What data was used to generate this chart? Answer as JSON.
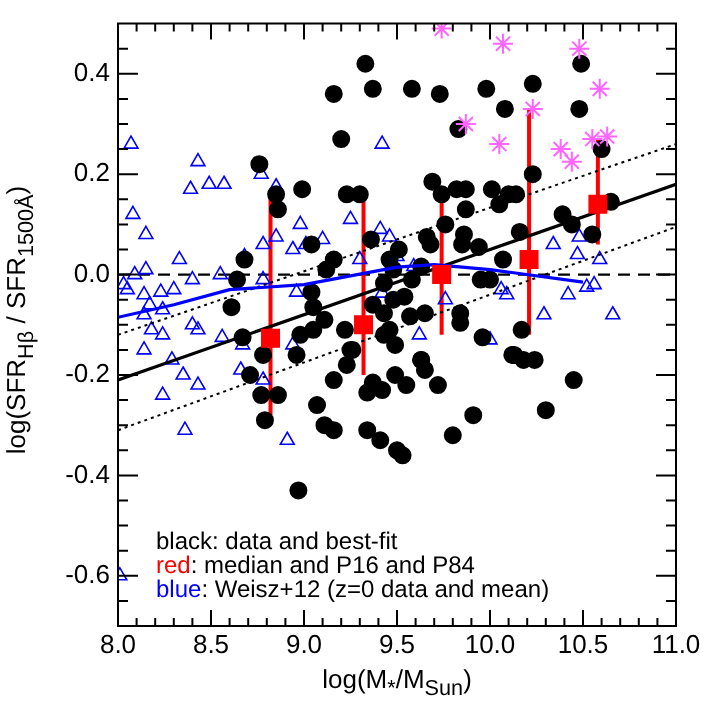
{
  "chart_data": {
    "type": "scatter",
    "xlabel": "log(M$_{*}$/M$_{Sun}$)",
    "ylabel": "log(SFR$_{Hβ}$ / SFR$_{1500Å}$)",
    "xlim": [
      8.0,
      11.0
    ],
    "ylim": [
      -0.7,
      0.5
    ],
    "xticks": [
      {
        "value": 8.0,
        "label": "8.0"
      },
      {
        "value": 8.1,
        "label": null
      },
      {
        "value": 8.2,
        "label": null
      },
      {
        "value": 8.3,
        "label": null
      },
      {
        "value": 8.4,
        "label": null
      },
      {
        "value": 8.5,
        "label": "8.5"
      },
      {
        "value": 8.6,
        "label": null
      },
      {
        "value": 8.7,
        "label": null
      },
      {
        "value": 8.8,
        "label": null
      },
      {
        "value": 8.9,
        "label": null
      },
      {
        "value": 9.0,
        "label": "9.0"
      },
      {
        "value": 9.1,
        "label": null
      },
      {
        "value": 9.2,
        "label": null
      },
      {
        "value": 9.3,
        "label": null
      },
      {
        "value": 9.4,
        "label": null
      },
      {
        "value": 9.5,
        "label": "9.5"
      },
      {
        "value": 9.6,
        "label": null
      },
      {
        "value": 9.7,
        "label": null
      },
      {
        "value": 9.8,
        "label": null
      },
      {
        "value": 9.9,
        "label": null
      },
      {
        "value": 10.0,
        "label": "10.0"
      },
      {
        "value": 10.1,
        "label": null
      },
      {
        "value": 10.2,
        "label": null
      },
      {
        "value": 10.3,
        "label": null
      },
      {
        "value": 10.4,
        "label": null
      },
      {
        "value": 10.5,
        "label": "10.5"
      },
      {
        "value": 10.6,
        "label": null
      },
      {
        "value": 10.7,
        "label": null
      },
      {
        "value": 10.8,
        "label": null
      },
      {
        "value": 10.9,
        "label": null
      },
      {
        "value": 11.0,
        "label": "11.0"
      }
    ],
    "yticks": [
      {
        "value": -0.7,
        "label": null
      },
      {
        "value": -0.65,
        "label": null
      },
      {
        "value": -0.6,
        "label": "-0.6"
      },
      {
        "value": -0.55,
        "label": null
      },
      {
        "value": -0.5,
        "label": null
      },
      {
        "value": -0.45,
        "label": null
      },
      {
        "value": -0.4,
        "label": "-0.4"
      },
      {
        "value": -0.35,
        "label": null
      },
      {
        "value": -0.3,
        "label": null
      },
      {
        "value": -0.25,
        "label": null
      },
      {
        "value": -0.2,
        "label": "-0.2"
      },
      {
        "value": -0.15,
        "label": null
      },
      {
        "value": -0.1,
        "label": null
      },
      {
        "value": -0.05,
        "label": null
      },
      {
        "value": 0.0,
        "label": "0.0"
      },
      {
        "value": 0.05,
        "label": null
      },
      {
        "value": 0.1,
        "label": null
      },
      {
        "value": 0.15,
        "label": null
      },
      {
        "value": 0.2,
        "label": "0.2"
      },
      {
        "value": 0.25,
        "label": null
      },
      {
        "value": 0.3,
        "label": null
      },
      {
        "value": 0.35,
        "label": null
      },
      {
        "value": 0.4,
        "label": "0.4"
      },
      {
        "value": 0.45,
        "label": null
      }
    ],
    "grid": false,
    "legend": false,
    "ref_lines": [
      {
        "axis": "y",
        "value": 0,
        "color": "#000000",
        "line_style": "dashed"
      }
    ],
    "annotations": [
      "black: data and best-fit",
      "red: median and P16 and P84",
      "blue: Weisz+12 (z=0 data and mean)"
    ],
    "series": [
      {
        "type": "scatter",
        "marker": "triangle",
        "color": "#0000ff",
        "x": [
          8.07,
          8.43,
          8.39,
          8.49,
          8.57,
          8.08,
          8.15,
          8.15,
          8.33,
          8.03,
          8.05,
          8.09,
          8.14,
          8.23,
          8.3,
          8.4,
          8.55,
          8.14,
          8.17,
          8.24,
          8.18,
          8.24,
          8.4,
          8.43,
          8.14,
          8.29,
          8.56,
          8.68,
          8.77,
          8.85,
          8.85,
          8.78,
          8.98,
          8.94,
          9.01,
          9.1,
          8.78,
          8.96,
          8.67,
          8.94,
          9.25,
          9.3,
          9.42,
          9.41,
          9.46,
          8.35,
          8.24,
          8.43,
          8.36,
          8.66,
          8.91,
          8.78,
          10.34,
          10.48,
          10.47,
          10.59,
          10.42,
          10.52,
          10.56,
          10.66,
          10.29,
          10.09,
          10.06,
          10.0,
          9.62,
          9.76,
          9.5,
          9.59,
          9.42,
          8.01
        ],
        "values": [
          0.26,
          0.225,
          0.17,
          0.18,
          0.18,
          0.12,
          0.08,
          0.01,
          0.03,
          -0.02,
          -0.03,
          0.0,
          -0.04,
          -0.035,
          -0.03,
          -0.01,
          0.0,
          -0.08,
          -0.06,
          -0.07,
          -0.11,
          -0.12,
          -0.1,
          -0.11,
          -0.15,
          -0.17,
          -0.125,
          0.036,
          0.2,
          0.175,
          0.075,
          0.06,
          0.1,
          0.05,
          0.06,
          0.07,
          -0.01,
          -0.035,
          -0.14,
          -0.14,
          0.11,
          0.03,
          0.26,
          0.09,
          0.075,
          -0.2,
          -0.24,
          -0.22,
          -0.31,
          -0.19,
          -0.33,
          -0.21,
          0.06,
          0.075,
          0.04,
          0.03,
          -0.04,
          -0.025,
          -0.02,
          -0.08,
          -0.08,
          -0.04,
          -0.03,
          -0.13,
          -0.12,
          -0.05,
          0.036,
          0.016,
          -0.037,
          -0.6
        ]
      },
      {
        "type": "scatter",
        "marker": "circle",
        "color": "#000000",
        "x": [
          8.76,
          8.85,
          8.86,
          8.99,
          9.16,
          9.2,
          9.23,
          9.33,
          9.37,
          9.3,
          9.36,
          9.04,
          9.16,
          8.68,
          8.64,
          8.61,
          8.67,
          8.78,
          8.98,
          9.05,
          9.11,
          9.12,
          9.04,
          9.05,
          9.22,
          9.25,
          9.37,
          9.43,
          9.46,
          8.96,
          8.71,
          8.77,
          8.86,
          8.79,
          8.97,
          9.07,
          9.11,
          9.16,
          9.16,
          9.26,
          9.34,
          9.34,
          9.37,
          9.5,
          9.23,
          9.41,
          9.53,
          9.49,
          9.42,
          9.55,
          9.63,
          9.65,
          9.72,
          9.8,
          9.91,
          10.12,
          10.18,
          10.24,
          10.3,
          10.45,
          9.58,
          9.73,
          9.98,
          10.08,
          10.23,
          10.49,
          10.48,
          9.83,
          10.6,
          9.69,
          9.74,
          9.82,
          9.87,
          9.87,
          10.01,
          10.05,
          10.1,
          10.14,
          10.23,
          9.76,
          9.86,
          9.85,
          9.66,
          9.68,
          9.94,
          10.07,
          10.16,
          10.39,
          10.44,
          10.55,
          10.65,
          9.51,
          9.48,
          9.63,
          9.58,
          9.43,
          9.95,
          10.0,
          9.48,
          9.54,
          9.43,
          9.57,
          9.65,
          9.84,
          9.84,
          9.46,
          9.49,
          9.96,
          10.17,
          10.13,
          9.63
        ],
        "values": [
          0.22,
          0.16,
          0.13,
          0.17,
          0.36,
          0.27,
          0.16,
          0.42,
          0.37,
          0.16,
          0.07,
          0.06,
          0.03,
          0.03,
          -0.01,
          -0.065,
          -0.125,
          -0.16,
          -0.12,
          -0.11,
          -0.09,
          0.01,
          -0.035,
          -0.065,
          -0.11,
          -0.15,
          -0.06,
          -0.12,
          0.03,
          -0.16,
          -0.2,
          -0.24,
          -0.24,
          -0.29,
          -0.43,
          -0.26,
          -0.3,
          -0.31,
          -0.21,
          -0.15,
          -0.235,
          -0.31,
          -0.215,
          -0.35,
          -0.18,
          -0.33,
          -0.36,
          -0.2,
          -0.23,
          -0.22,
          -0.17,
          -0.19,
          -0.22,
          -0.32,
          -0.28,
          -0.16,
          -0.17,
          -0.17,
          -0.27,
          -0.21,
          0.37,
          0.36,
          0.37,
          0.33,
          0.38,
          0.42,
          0.33,
          0.29,
          0.25,
          0.185,
          0.16,
          0.17,
          0.17,
          0.13,
          0.17,
          0.14,
          0.16,
          0.16,
          0.2,
          0.1,
          0.08,
          0.06,
          0.075,
          0.06,
          0.055,
          0.03,
          0.085,
          0.12,
          0.1,
          0.08,
          0.145,
          0.05,
          0.01,
          0.016,
          -0.01,
          -0.017,
          -0.01,
          -0.01,
          -0.05,
          -0.044,
          -0.077,
          -0.083,
          -0.077,
          -0.077,
          -0.096,
          -0.11,
          -0.14,
          -0.125,
          -0.11,
          -0.16,
          -0.17
        ]
      },
      {
        "type": "scatter",
        "marker": "cross",
        "color": "#ff66ff",
        "x": [
          9.74,
          10.07,
          10.23,
          10.48,
          10.59,
          9.87,
          10.05,
          10.38,
          10.44,
          10.55,
          10.63
        ],
        "values": [
          0.49,
          0.46,
          0.33,
          0.45,
          0.37,
          0.3,
          0.26,
          0.25,
          0.225,
          0.27,
          0.275
        ]
      },
      {
        "type": "line",
        "line_style": "dotted",
        "color": "#000000",
        "x": [
          8.0,
          11.0
        ],
        "values": [
          -0.12,
          0.26
        ]
      },
      {
        "type": "line",
        "line_style": "dotted",
        "color": "#000000",
        "x": [
          8.0,
          11.0
        ],
        "values": [
          -0.31,
          0.095
        ]
      },
      {
        "type": "line",
        "line_style": "solid",
        "color": "#000000",
        "x": [
          8.0,
          11.0
        ],
        "values": [
          -0.21,
          0.18
        ]
      },
      {
        "type": "line",
        "line_style": "solid",
        "color": "#0000ff",
        "x": [
          8.0,
          8.3,
          8.6,
          9.0,
          9.5,
          9.7,
          10.0,
          10.5
        ],
        "values": [
          -0.085,
          -0.06,
          -0.03,
          -0.02,
          0.015,
          0.02,
          0.01,
          -0.015
        ]
      },
      {
        "type": "scatter",
        "marker": "square",
        "color": "#ff0000",
        "x": [
          8.82,
          9.32,
          9.74,
          10.21,
          10.58
        ],
        "values": [
          -0.127,
          -0.1,
          0.0,
          0.03,
          0.14
        ],
        "errors": [
          [
            -0.28,
            0.16
          ],
          [
            -0.2,
            0.15
          ],
          [
            -0.12,
            0.16
          ],
          [
            -0.12,
            0.33
          ],
          [
            0.06,
            0.27
          ]
        ]
      }
    ]
  }
}
